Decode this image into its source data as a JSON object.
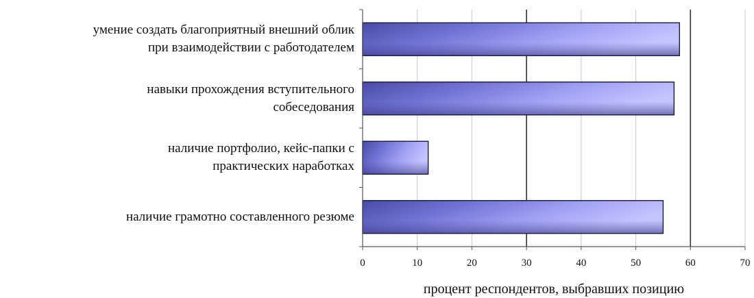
{
  "chart_data": {
    "type": "bar",
    "orientation": "horizontal",
    "categories": [
      [
        "умение создать благоприятный внешний облик",
        "при взаимодействии с работодателем"
      ],
      [
        "навыки прохождения вступительного",
        "собеседования"
      ],
      [
        "наличие портфолио, кейс-папки с",
        "практических наработках"
      ],
      [
        "наличие грамотно составленного резюме"
      ]
    ],
    "values": [
      58,
      57,
      12,
      55
    ],
    "xlabel": "процент респондентов, выбравших позицию",
    "xlim": [
      0,
      70
    ],
    "x_ticks": [
      "0",
      "10",
      "20",
      "30",
      "40",
      "50",
      "60",
      "70"
    ],
    "grid": "vertical",
    "colors": {
      "bar_light": "#b9b9ff",
      "bar_mid": "#8c8cee",
      "bar_dark": "#4a4aa8",
      "bar_outline": "#1a1a3a",
      "grid": "#c8c8c8",
      "grid_major": "#333333",
      "axis": "#555555"
    }
  }
}
